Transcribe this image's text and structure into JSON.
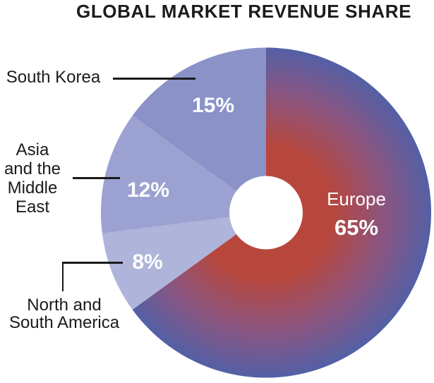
{
  "chart_data": {
    "type": "pie",
    "title": "GLOBAL MARKET REVENUE SHARE",
    "donut": true,
    "direction": "clockwise",
    "start_angle_deg": 0,
    "value_unit": "%",
    "legend_position": "none",
    "labels_style": "outside labels with black leader lines; values in white inside slices",
    "segments": [
      {
        "id": "europe",
        "label": "Europe",
        "value": 65,
        "fill": "radial-gradient",
        "gradient_inner": "#b7473d",
        "gradient_mid": "#8a5580",
        "gradient_outer": "#5360a6"
      },
      {
        "id": "north-south-america",
        "label": "North and South America",
        "value": 8,
        "color": "#afb4da"
      },
      {
        "id": "asia-middle-east",
        "label": "Asia and the Middle East",
        "value": 12,
        "color": "#9ba2d1"
      },
      {
        "id": "south-korea",
        "label": "South Korea",
        "value": 15,
        "color": "#8a92c8"
      }
    ]
  },
  "callouts": {
    "south_korea": {
      "label": "South Korea",
      "value": "15%"
    },
    "asia_middle_east": {
      "label": "Asia\nand the\nMiddle\nEast",
      "value": "12%"
    },
    "north_south_america": {
      "label": "North and\nSouth America",
      "value": "8%"
    },
    "europe": {
      "label": "Europe",
      "value": "65%"
    }
  },
  "colors": {
    "background": "#ffffff",
    "text": "#1b1b1b",
    "leader_line": "#1b1b1b",
    "slice_value_text": "#ffffff",
    "donut_hole": "#ffffff"
  }
}
